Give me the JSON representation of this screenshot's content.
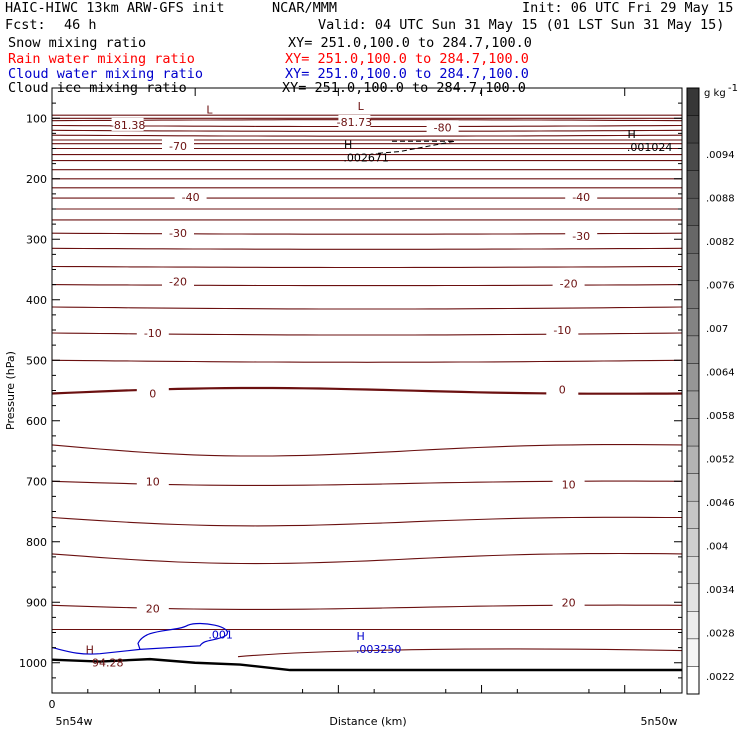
{
  "header": {
    "title": "HAIC-HIWC 13km ARW-GFS init",
    "org": "NCAR/MMM",
    "init": "Init: 06 UTC Fri 29 May 15",
    "fcst_label": "Fcst:",
    "fcst_value": "46 h",
    "valid": "Valid: 04 UTC Sun 31 May 15 (01 LST Sun 31 May 15)",
    "fields": [
      {
        "name": "Snow mixing ratio",
        "xy": "XY= 251.0,100.0 to 284.7,100.0",
        "color": "#000000"
      },
      {
        "name": "Rain water mixing ratio",
        "xy": "XY= 251.0,100.0 to 284.7,100.0",
        "color": "#ff0000"
      },
      {
        "name": "Cloud water mixing ratio",
        "xy": "XY= 251.0,100.0 to 284.7,100.0",
        "color": "#0000cc"
      },
      {
        "name": "Cloud ice mixing ratio",
        "xy": "XY= 251.0,100.0 to 284.7,100.0",
        "color": "#000000"
      }
    ]
  },
  "chart_data": {
    "type": "contour",
    "ylabel": "Pressure (hPa)",
    "xlabel": "Distance (km)",
    "ylim": [
      1050,
      50
    ],
    "yticks": [
      100,
      200,
      300,
      400,
      500,
      600,
      700,
      800,
      900,
      1000
    ],
    "xticks_labels": [
      "0"
    ],
    "x_endpoints": [
      "5n54w",
      "5n50w"
    ],
    "contour_color": "#6b1010",
    "temperature_labels": [
      {
        "text": "-81.38",
        "x": 0.12,
        "p": 111
      },
      {
        "text": "-81.73",
        "x": 0.48,
        "p": 106
      },
      {
        "text": "-80",
        "x": 0.62,
        "p": 115
      },
      {
        "text": "-70",
        "x": 0.2,
        "p": 146
      },
      {
        "text": "-40",
        "x": 0.22,
        "p": 230
      },
      {
        "text": "-40",
        "x": 0.84,
        "p": 230
      },
      {
        "text": "-30",
        "x": 0.2,
        "p": 290
      },
      {
        "text": "-30",
        "x": 0.84,
        "p": 295
      },
      {
        "text": "-20",
        "x": 0.2,
        "p": 370
      },
      {
        "text": "-20",
        "x": 0.82,
        "p": 373
      },
      {
        "text": "-10",
        "x": 0.16,
        "p": 455
      },
      {
        "text": "-10",
        "x": 0.81,
        "p": 450
      },
      {
        "text": "0",
        "x": 0.16,
        "p": 555
      },
      {
        "text": "0",
        "x": 0.81,
        "p": 548
      },
      {
        "text": "10",
        "x": 0.16,
        "p": 700
      },
      {
        "text": "10",
        "x": 0.82,
        "p": 705
      },
      {
        "text": "20",
        "x": 0.16,
        "p": 910
      },
      {
        "text": "20",
        "x": 0.82,
        "p": 900
      }
    ],
    "extrema": [
      {
        "kind": "L",
        "value": "",
        "x": 0.25,
        "p": 92,
        "color": "#6b1010"
      },
      {
        "kind": "L",
        "value": "",
        "x": 0.49,
        "p": 86,
        "color": "#6b1010"
      },
      {
        "kind": "H",
        "value": ".002671",
        "x": 0.47,
        "p": 150,
        "color": "#000000"
      },
      {
        "kind": "H",
        "value": ".001024",
        "x": 0.92,
        "p": 133,
        "color": "#000000"
      },
      {
        "kind": "H",
        "value": "94.28",
        "x": 0.06,
        "p": 985,
        "color": "#6b1010"
      },
      {
        "kind": "H",
        "value": ".003250",
        "x": 0.49,
        "p": 962,
        "color": "#0000cc"
      }
    ],
    "cloud_label": {
      "text": ".001",
      "x": 0.22,
      "p": 953,
      "color": "#0000cc"
    },
    "colorbar": {
      "unit": "g kg",
      "unit_sup": "-1",
      "labels": [
        ".0094",
        ".0088",
        ".0082",
        ".0076",
        ".007",
        ".0064",
        ".0058",
        ".0052",
        ".0046",
        ".004",
        ".0034",
        ".0028",
        ".0022"
      ]
    }
  }
}
